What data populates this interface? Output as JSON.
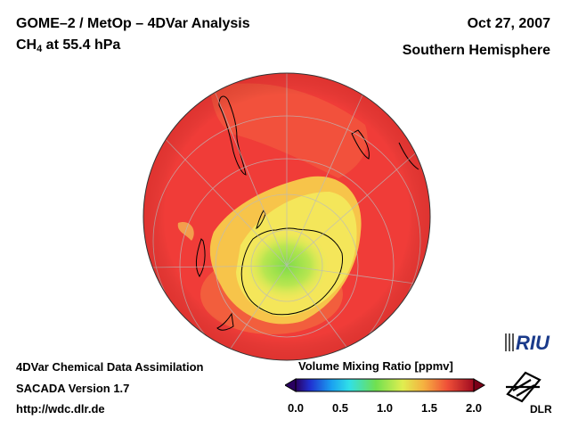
{
  "header": {
    "title_line1": "GOME–2 / MetOp – 4DVar Analysis",
    "title_line2_species": "CH",
    "title_line2_subscript": "4",
    "title_line2_rest": " at 55.4 hPa",
    "date": "Oct 27, 2007",
    "hemisphere": "Southern Hemisphere"
  },
  "footer": {
    "line1": "4DVar Chemical Data Assimilation",
    "line2": "SACADA Version 1.7",
    "line3": "http://wdc.dlr.de"
  },
  "colorbar": {
    "title": "Volume Mixing Ratio [ppmv]",
    "ticks": [
      "0.0",
      "0.5",
      "1.0",
      "1.5",
      "2.0"
    ],
    "min": 0.0,
    "max": 2.0
  },
  "logos": {
    "riu": "RIU",
    "dlr": "DLR"
  },
  "colors": {
    "high": "#f03a38",
    "mid": "#f5e85a",
    "low": "#8ee04a",
    "coast": "#000000",
    "grid": "#bbbbbb"
  },
  "icons": [
    "riu-logo-icon",
    "dlr-logo-icon"
  ]
}
